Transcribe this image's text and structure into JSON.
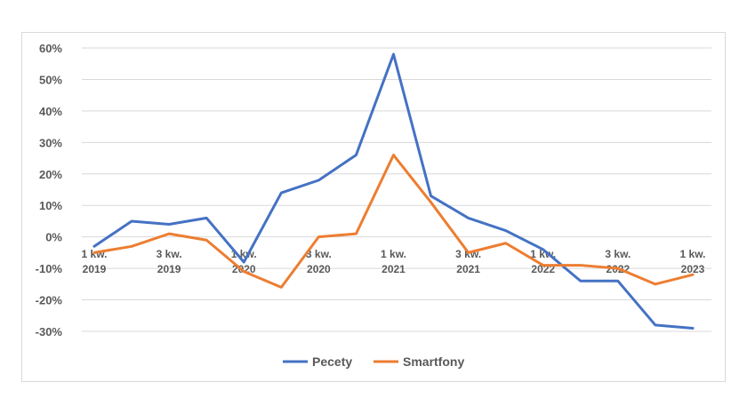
{
  "chart_data": {
    "type": "line",
    "title": "",
    "xlabel": "",
    "ylabel": "",
    "ylim": [
      -30,
      60
    ],
    "y_ticks": [
      "60%",
      "50%",
      "40%",
      "30%",
      "20%",
      "10%",
      "0%",
      "-10%",
      "-20%",
      "-30%"
    ],
    "y_tick_values": [
      60,
      50,
      40,
      30,
      20,
      10,
      0,
      -10,
      -20,
      -30
    ],
    "x_tick_labels": [
      {
        "line1": "1 kw.",
        "line2": "2019",
        "index": 0
      },
      {
        "line1": "3 kw.",
        "line2": "2019",
        "index": 2
      },
      {
        "line1": "1 kw.",
        "line2": "2020",
        "index": 4
      },
      {
        "line1": "3 kw.",
        "line2": "2020",
        "index": 6
      },
      {
        "line1": "1 kw.",
        "line2": "2021",
        "index": 8
      },
      {
        "line1": "3 kw.",
        "line2": "2021",
        "index": 10
      },
      {
        "line1": "1 kw.",
        "line2": "2022",
        "index": 12
      },
      {
        "line1": "3 kw.",
        "line2": "2022",
        "index": 14
      },
      {
        "line1": "1 kw.",
        "line2": "2023",
        "index": 16
      }
    ],
    "grid": true,
    "legend": "bottom",
    "series": [
      {
        "name": "Pecety",
        "color": "#4472c4",
        "values": [
          -3,
          5,
          4,
          6,
          -8,
          14,
          18,
          26,
          58,
          13,
          6,
          2,
          -4,
          -14,
          -14,
          -28,
          -29
        ]
      },
      {
        "name": "Smartfony",
        "color": "#ed7d31",
        "values": [
          -5,
          -3,
          1,
          -1,
          -11,
          -16,
          0,
          1,
          26,
          11,
          -5,
          -2,
          -9,
          -9,
          -10,
          -15,
          -12
        ]
      }
    ]
  }
}
